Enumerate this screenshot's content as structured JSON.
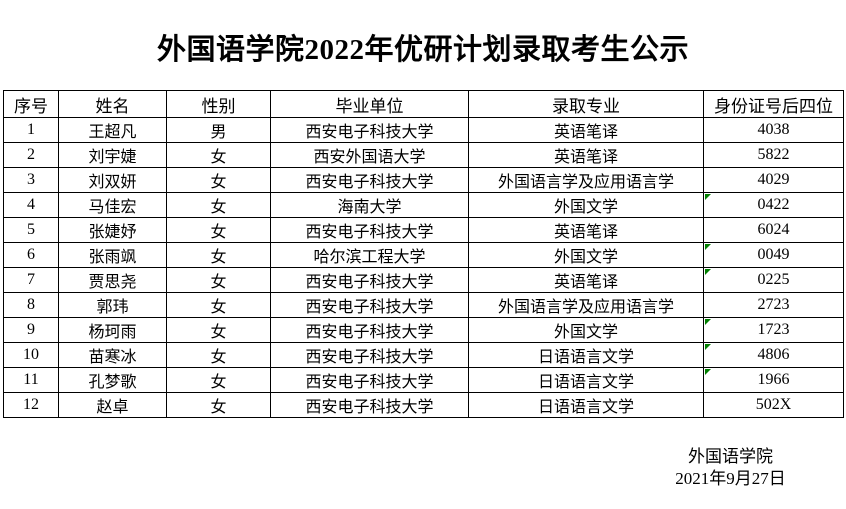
{
  "title": "外国语学院2022年优研计划录取考生公示",
  "table": {
    "headers": [
      "序号",
      "姓名",
      "性别",
      "毕业单位",
      "录取专业",
      "身份证号后四位"
    ],
    "rows": [
      {
        "seq": "1",
        "name": "王超凡",
        "gender": "男",
        "school": "西安电子科技大学",
        "major": "英语笔译",
        "id4": "4038",
        "flag": false
      },
      {
        "seq": "2",
        "name": "刘宇婕",
        "gender": "女",
        "school": "西安外国语大学",
        "major": "英语笔译",
        "id4": "5822",
        "flag": false
      },
      {
        "seq": "3",
        "name": "刘双妍",
        "gender": "女",
        "school": "西安电子科技大学",
        "major": "外国语言学及应用语言学",
        "id4": "4029",
        "flag": false
      },
      {
        "seq": "4",
        "name": "马佳宏",
        "gender": "女",
        "school": "海南大学",
        "major": "外国文学",
        "id4": "0422",
        "flag": true
      },
      {
        "seq": "5",
        "name": "张婕妤",
        "gender": "女",
        "school": "西安电子科技大学",
        "major": "英语笔译",
        "id4": "6024",
        "flag": false
      },
      {
        "seq": "6",
        "name": "张雨飒",
        "gender": "女",
        "school": "哈尔滨工程大学",
        "major": "外国文学",
        "id4": "0049",
        "flag": true
      },
      {
        "seq": "7",
        "name": "贾思尧",
        "gender": "女",
        "school": "西安电子科技大学",
        "major": "英语笔译",
        "id4": "0225",
        "flag": true
      },
      {
        "seq": "8",
        "name": "郭玮",
        "gender": "女",
        "school": "西安电子科技大学",
        "major": "外国语言学及应用语言学",
        "id4": "2723",
        "flag": false
      },
      {
        "seq": "9",
        "name": "杨珂雨",
        "gender": "女",
        "school": "西安电子科技大学",
        "major": "外国文学",
        "id4": "1723",
        "flag": true
      },
      {
        "seq": "10",
        "name": "苗寒冰",
        "gender": "女",
        "school": "西安电子科技大学",
        "major": "日语语言文学",
        "id4": "4806",
        "flag": true
      },
      {
        "seq": "11",
        "name": "孔梦歌",
        "gender": "女",
        "school": "西安电子科技大学",
        "major": "日语语言文学",
        "id4": "1966",
        "flag": true
      },
      {
        "seq": "12",
        "name": "赵卓",
        "gender": "女",
        "school": "西安电子科技大学",
        "major": "日语语言文学",
        "id4": "502X",
        "flag": false
      }
    ]
  },
  "footer": {
    "signature": "外国语学院",
    "date": "2021年9月27日"
  },
  "colors": {
    "flag_triangle": "#008000",
    "border": "#000000",
    "text": "#000000",
    "background": "#ffffff"
  }
}
